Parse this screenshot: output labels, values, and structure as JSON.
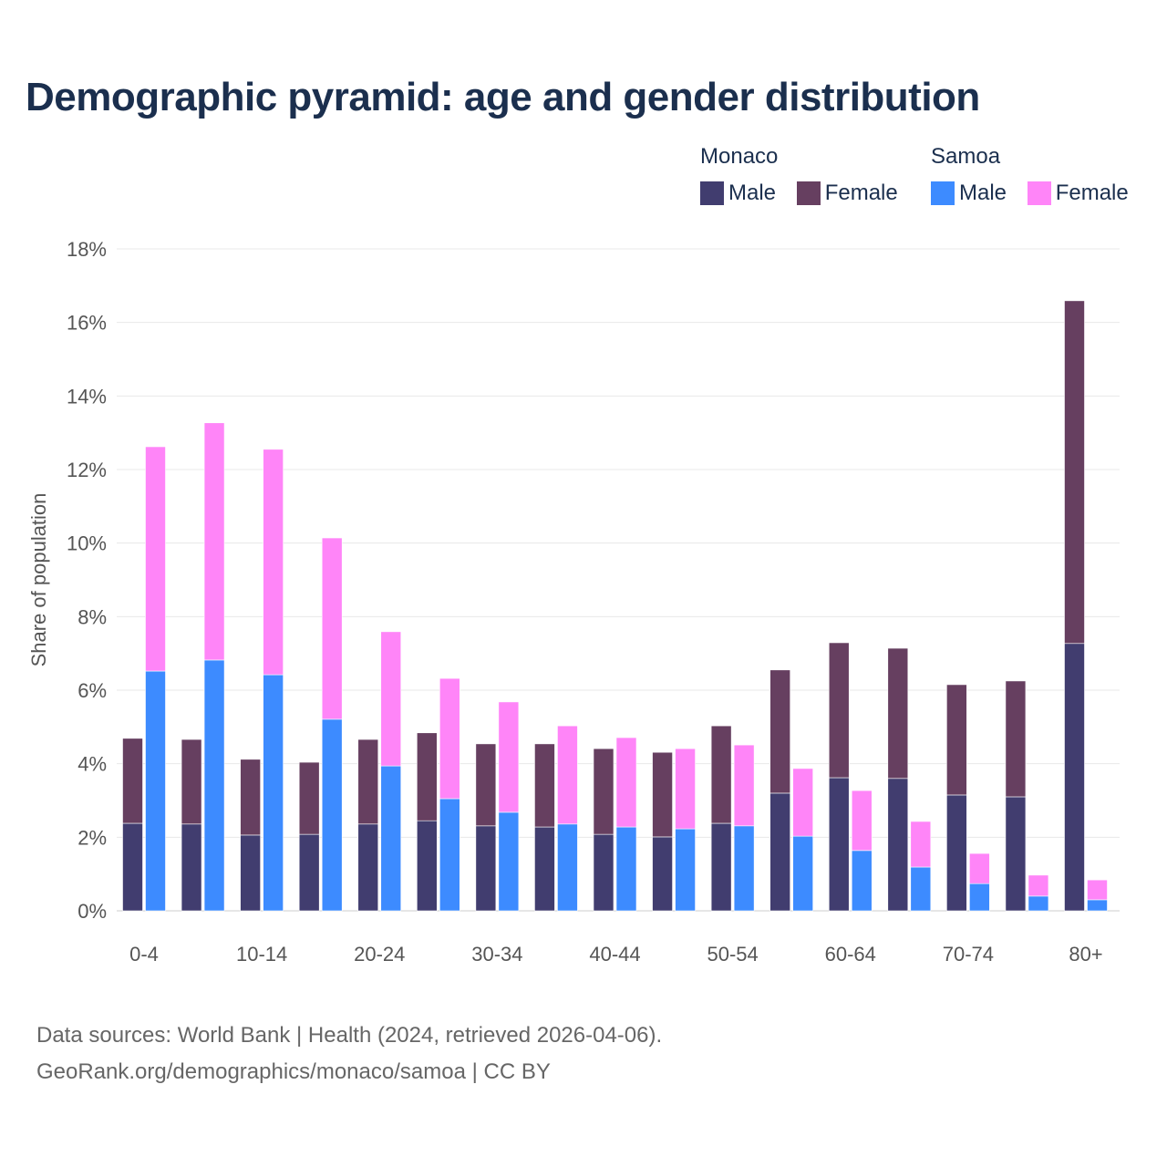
{
  "chart_data": {
    "type": "bar",
    "stacked": true,
    "title": "Demographic pyramid: age and gender distribution",
    "xlabel": "",
    "ylabel": "Share of population",
    "ylim": [
      0,
      18
    ],
    "yticks": [
      "0%",
      "2%",
      "4%",
      "6%",
      "8%",
      "10%",
      "12%",
      "14%",
      "16%",
      "18%"
    ],
    "ytick_values": [
      0,
      2,
      4,
      6,
      8,
      10,
      12,
      14,
      16,
      18
    ],
    "grid": true,
    "categories": [
      "0-4",
      "5-9",
      "10-14",
      "15-19",
      "20-24",
      "25-29",
      "30-34",
      "35-39",
      "40-44",
      "45-49",
      "50-54",
      "55-59",
      "60-64",
      "65-69",
      "70-74",
      "75-79",
      "80+"
    ],
    "xtick_labels_shown": [
      "0-4",
      "10-14",
      "20-24",
      "30-34",
      "40-44",
      "50-54",
      "60-64",
      "70-74",
      "80+"
    ],
    "legend_placement": "top-right",
    "groups": [
      {
        "name": "Monaco",
        "series": [
          {
            "name": "Male",
            "color": "#413d6f",
            "values": [
              2.38,
              2.36,
              2.06,
              2.08,
              2.36,
              2.45,
              2.31,
              2.28,
              2.08,
              2.01,
              2.38,
              3.2,
              3.62,
              3.6,
              3.15,
              3.1,
              7.27
            ]
          },
          {
            "name": "Female",
            "color": "#663f60",
            "values": [
              2.31,
              2.3,
              2.06,
              1.96,
              2.3,
              2.39,
              2.23,
              2.26,
              2.33,
              2.3,
              2.65,
              3.35,
              3.67,
              3.54,
              3.0,
              3.15,
              9.32
            ]
          }
        ]
      },
      {
        "name": "Samoa",
        "series": [
          {
            "name": "Male",
            "color": "#3d8bff",
            "values": [
              6.52,
              6.82,
              6.42,
              5.21,
              3.94,
              3.05,
              2.68,
              2.36,
              2.28,
              2.23,
              2.31,
              2.03,
              1.64,
              1.19,
              0.74,
              0.4,
              0.3
            ]
          },
          {
            "name": "Female",
            "color": "#ff85f8",
            "values": [
              6.1,
              6.45,
              6.13,
              4.93,
              3.65,
              3.27,
              3.0,
              2.67,
              2.43,
              2.18,
              2.2,
              1.84,
              1.63,
              1.24,
              0.82,
              0.57,
              0.54
            ]
          }
        ]
      }
    ]
  },
  "footer": {
    "line1": "Data sources: World Bank | Health (2024, retrieved 2026-04-06).",
    "line2": "GeoRank.org/demographics/monaco/samoa | CC BY"
  }
}
